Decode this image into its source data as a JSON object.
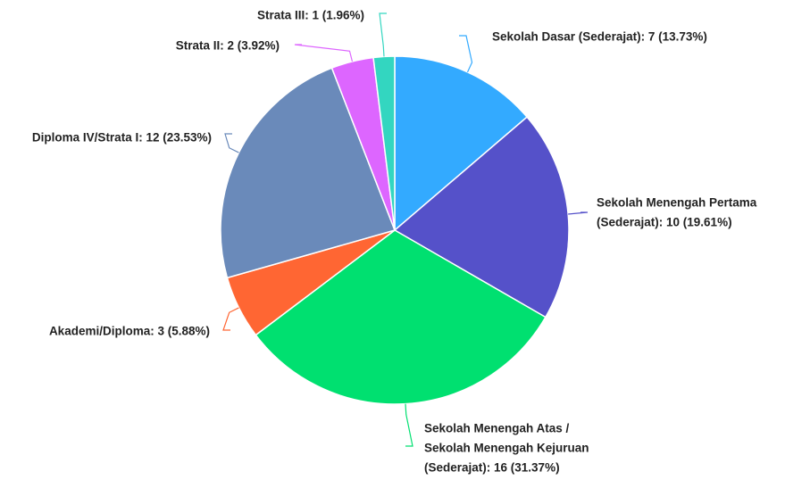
{
  "chart_data": {
    "type": "pie",
    "values": [
      7,
      10,
      16,
      3,
      12,
      2,
      1
    ],
    "value_labels": [
      [
        "Sekolah Dasar (Sederajat): 7 (13.73%)"
      ],
      [
        "Sekolah Menengah Pertama",
        "(Sederajat): 10 (19.61%)"
      ],
      [
        "Sekolah Menengah Atas /",
        "Sekolah Menengah Kejuruan",
        "(Sederajat): 16 (31.37%)"
      ],
      [
        "Akademi/Diploma: 3 (5.88%)"
      ],
      [
        "Diploma IV/Strata I: 12 (23.53%)"
      ],
      [
        "Strata II: 2 (3.92%)"
      ],
      [
        "Strata III: 1 (1.96%)"
      ]
    ],
    "colors": [
      "#33aaff",
      "#5551c9",
      "#00e070",
      "#ff6633",
      "#6a8aba",
      "#dd66ff",
      "#33d6c0"
    ]
  }
}
